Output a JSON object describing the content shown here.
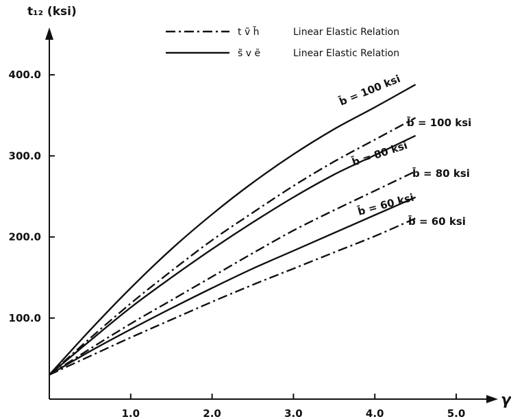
{
  "chart_data": {
    "type": "line",
    "title": "",
    "ylabel": "t₁₂ (ksi)",
    "xlabel": "γ",
    "xlim": [
      0,
      5.4
    ],
    "ylim": [
      0,
      420
    ],
    "xticks": [
      {
        "value": 1.0,
        "label": "1.0"
      },
      {
        "value": 2.0,
        "label": "2.0"
      },
      {
        "value": 3.0,
        "label": "3.0"
      },
      {
        "value": 4.0,
        "label": "4.0"
      },
      {
        "value": 5.0,
        "label": "5.0"
      }
    ],
    "yticks": [
      {
        "value": 100,
        "label": "100.0"
      },
      {
        "value": 200,
        "label": "200.0"
      },
      {
        "value": 300,
        "label": "300.0"
      },
      {
        "value": 400,
        "label": "400.0"
      }
    ],
    "legend": [
      {
        "symbol": "t ṽ h̃",
        "label": "Linear Elastic Relation",
        "style": "dashdot"
      },
      {
        "symbol": "s̃ v ẽ",
        "label": "Linear Elastic Relation",
        "style": "solid"
      }
    ],
    "legend_position": "top",
    "series": [
      {
        "style": "solid",
        "label": "b̄ = 100 ksi",
        "x": [
          0,
          0.5,
          1.0,
          1.5,
          2.0,
          2.5,
          3.0,
          3.5,
          4.0,
          4.5
        ],
        "y": [
          30,
          85,
          137,
          185,
          228,
          267,
          302,
          333,
          360,
          388
        ]
      },
      {
        "style": "dashdot",
        "label": "b̄ = 100 ksi",
        "x": [
          0,
          0.5,
          1.0,
          1.5,
          2.0,
          2.5,
          3.0,
          3.5,
          4.0,
          4.5
        ],
        "y": [
          30,
          75,
          118,
          158,
          196,
          230,
          263,
          293,
          320,
          347
        ]
      },
      {
        "style": "solid",
        "label": "b̄ = 80 ksi",
        "x": [
          0,
          0.5,
          1.0,
          1.5,
          2.0,
          2.5,
          3.0,
          3.5,
          4.0,
          4.5
        ],
        "y": [
          30,
          72,
          113,
          150,
          185,
          218,
          249,
          277,
          301,
          325
        ]
      },
      {
        "style": "dashdot",
        "label": "b̄ = 80 ksi",
        "x": [
          0,
          0.5,
          1.0,
          1.5,
          2.0,
          2.5,
          3.0,
          3.5,
          4.0,
          4.5
        ],
        "y": [
          30,
          62,
          93,
          122,
          151,
          180,
          208,
          233,
          257,
          281
        ]
      },
      {
        "style": "solid",
        "label": "b̄ = 60 ksi",
        "x": [
          0,
          0.5,
          1.0,
          1.5,
          2.0,
          2.5,
          3.0,
          3.5,
          4.0,
          4.5
        ],
        "y": [
          30,
          59,
          86,
          112,
          137,
          161,
          183,
          205,
          227,
          249
        ]
      },
      {
        "style": "dashdot",
        "label": "b̄ = 60 ksi",
        "x": [
          0,
          0.5,
          1.0,
          1.5,
          2.0,
          2.5,
          3.0,
          3.5,
          4.0,
          4.5
        ],
        "y": [
          30,
          53,
          76,
          98,
          120,
          141,
          161,
          181,
          201,
          223
        ]
      }
    ]
  }
}
